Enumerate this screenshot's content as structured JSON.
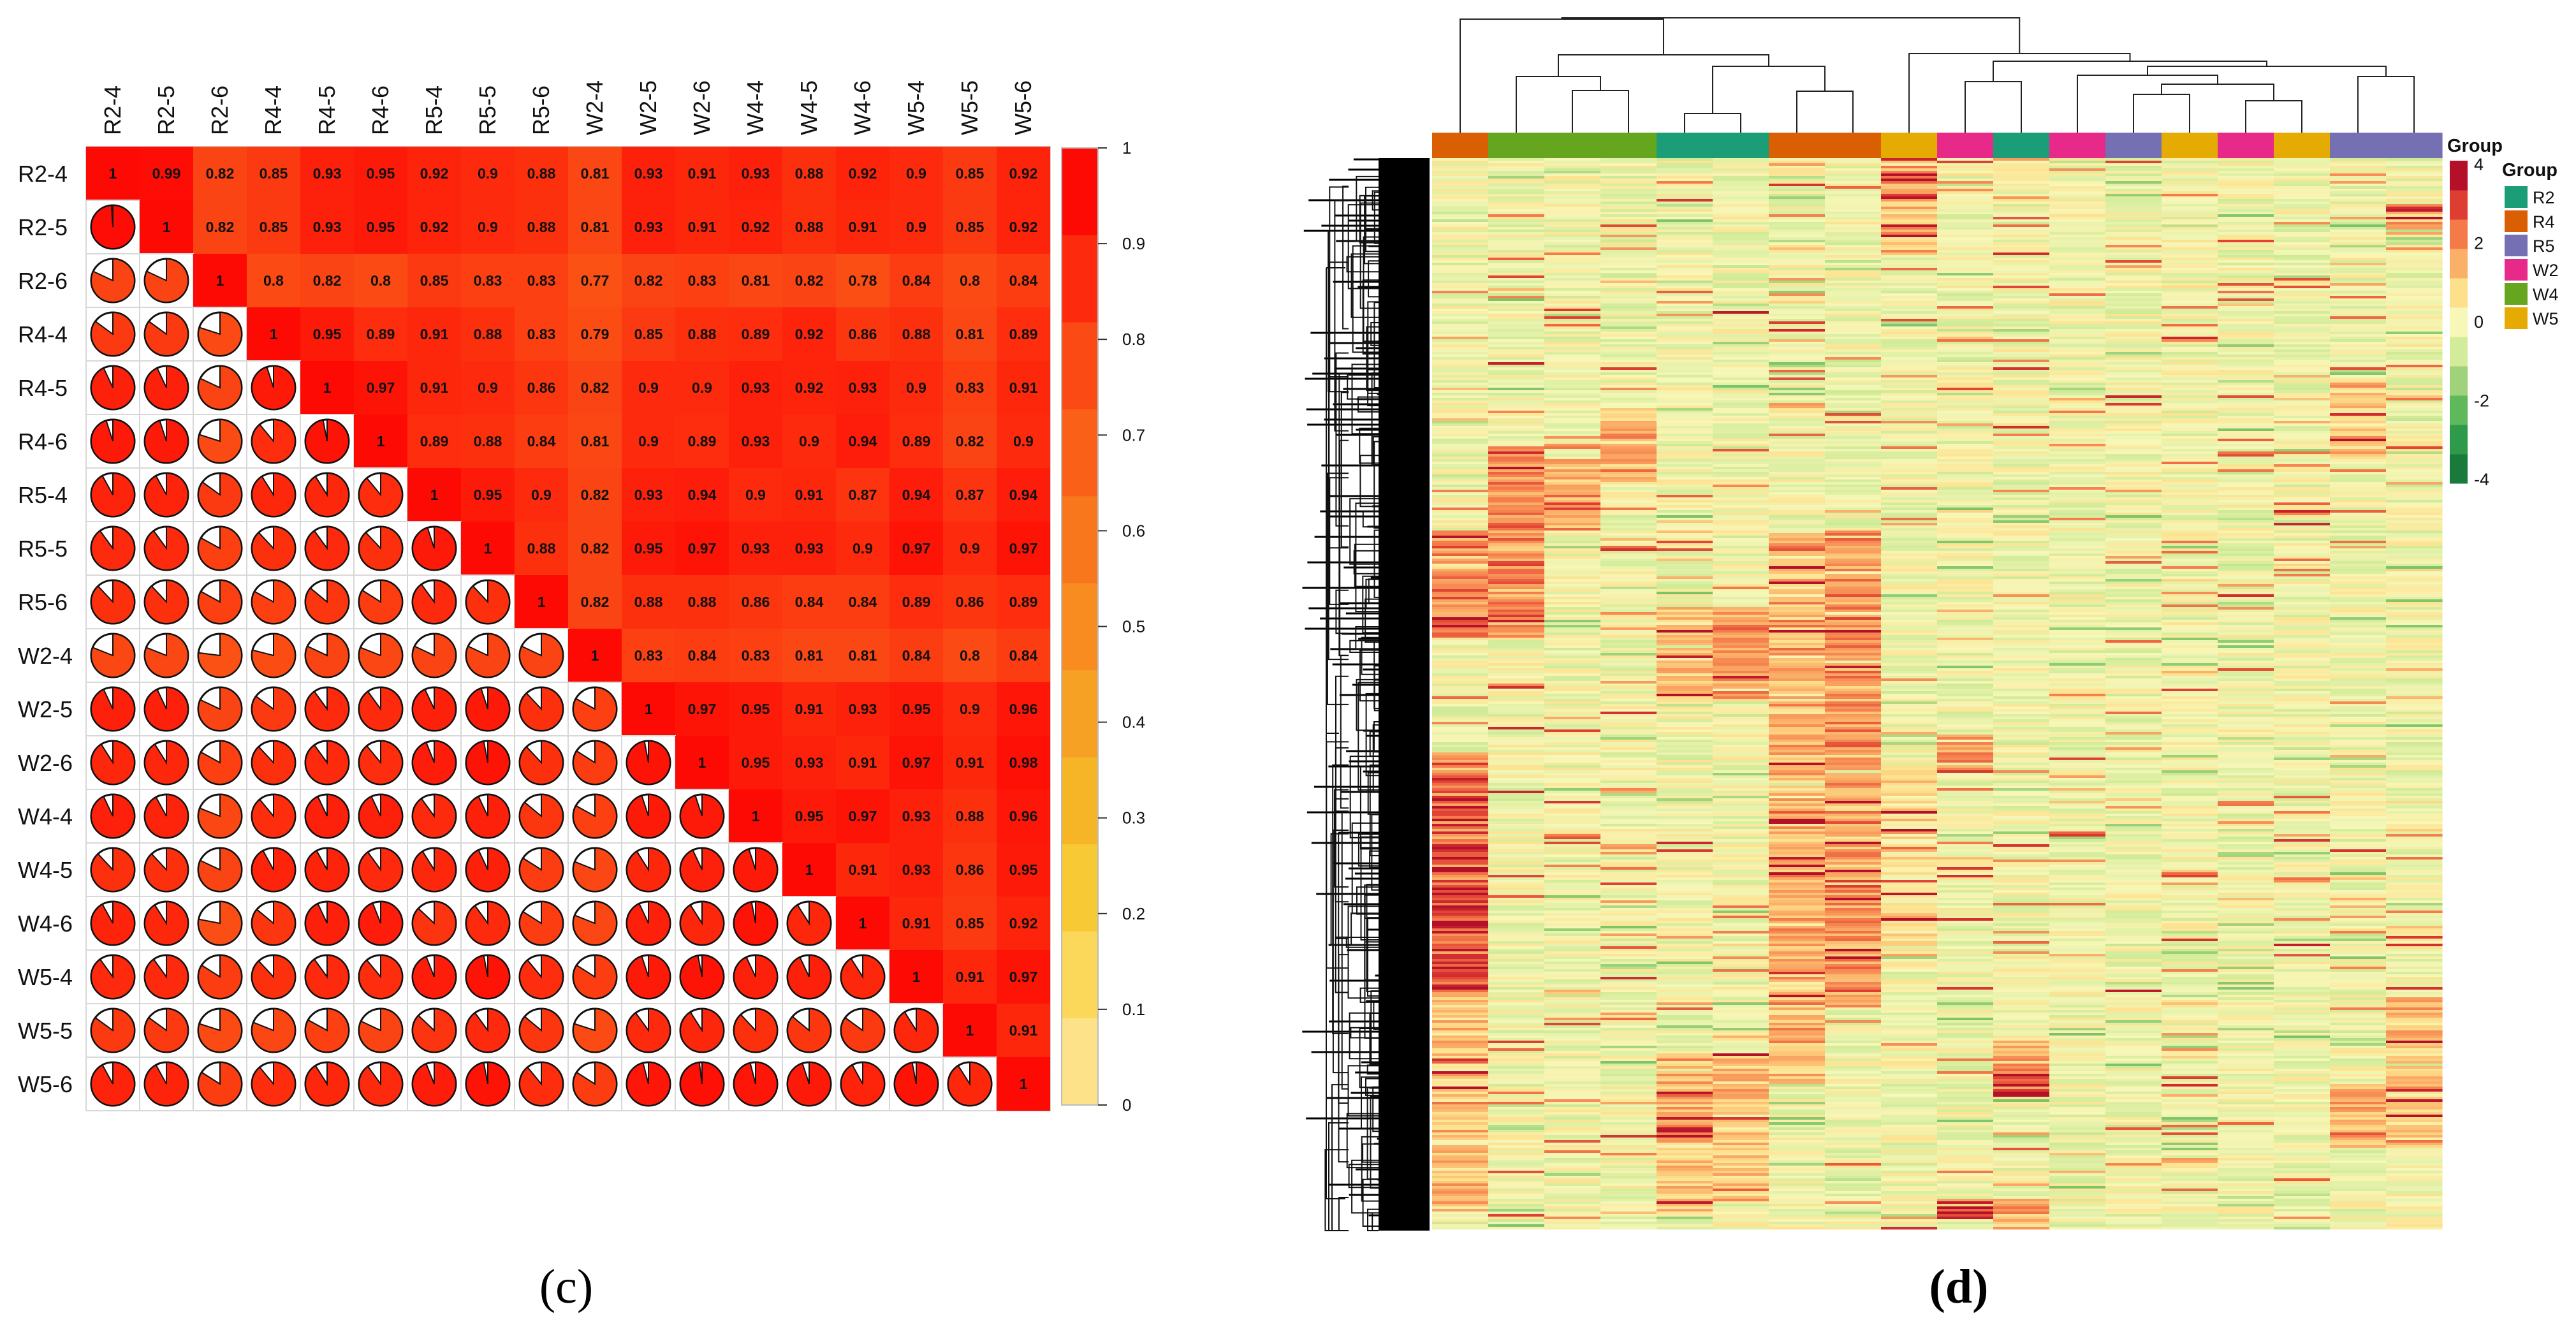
{
  "panel_labels": {
    "left": "(c)",
    "right": "(d)"
  },
  "chart_data": [
    {
      "type": "heatmap",
      "subtype": "correlation-matrix (upper: colored number, lower: pie)",
      "title": "",
      "samples": [
        "R2-4",
        "R2-5",
        "R2-6",
        "R4-4",
        "R4-5",
        "R4-6",
        "R5-4",
        "R5-5",
        "R5-6",
        "W2-4",
        "W2-5",
        "W2-6",
        "W4-4",
        "W4-5",
        "W4-6",
        "W5-4",
        "W5-5",
        "W5-6"
      ],
      "upper_triangle": [
        [
          0.99,
          0.82,
          0.85,
          0.93,
          0.95,
          0.92,
          0.9,
          0.88,
          0.81,
          0.93,
          0.91,
          0.93,
          0.88,
          0.92,
          0.9,
          0.85,
          0.92
        ],
        [
          0.82,
          0.85,
          0.93,
          0.95,
          0.92,
          0.9,
          0.88,
          0.81,
          0.93,
          0.91,
          0.92,
          0.88,
          0.91,
          0.9,
          0.85,
          0.92
        ],
        [
          0.8,
          0.82,
          0.8,
          0.85,
          0.83,
          0.83,
          0.77,
          0.82,
          0.83,
          0.81,
          0.82,
          0.78,
          0.84,
          0.8,
          0.84
        ],
        [
          0.95,
          0.89,
          0.91,
          0.88,
          0.83,
          0.79,
          0.85,
          0.88,
          0.89,
          0.92,
          0.86,
          0.88,
          0.81,
          0.89
        ],
        [
          0.97,
          0.91,
          0.9,
          0.86,
          0.82,
          0.9,
          0.9,
          0.93,
          0.92,
          0.93,
          0.9,
          0.83,
          0.91
        ],
        [
          0.89,
          0.88,
          0.84,
          0.81,
          0.9,
          0.89,
          0.93,
          0.9,
          0.94,
          0.89,
          0.82,
          0.9
        ],
        [
          0.95,
          0.9,
          0.82,
          0.93,
          0.94,
          0.9,
          0.91,
          0.87,
          0.94,
          0.87,
          0.94
        ],
        [
          0.88,
          0.82,
          0.95,
          0.97,
          0.93,
          0.93,
          0.9,
          0.97,
          0.9,
          0.97
        ],
        [
          0.82,
          0.88,
          0.88,
          0.86,
          0.84,
          0.84,
          0.89,
          0.86,
          0.89
        ],
        [
          0.83,
          0.84,
          0.83,
          0.81,
          0.81,
          0.84,
          0.8,
          0.84
        ],
        [
          0.97,
          0.95,
          0.91,
          0.93,
          0.95,
          0.9,
          0.96
        ],
        [
          0.95,
          0.93,
          0.91,
          0.97,
          0.91,
          0.98
        ],
        [
          0.95,
          0.97,
          0.93,
          0.88,
          0.96
        ],
        [
          0.91,
          0.93,
          0.86,
          0.95
        ],
        [
          0.91,
          0.85,
          0.92
        ],
        [
          0.91,
          0.97
        ],
        [
          0.91
        ]
      ],
      "diagonal": 1,
      "colorbar": {
        "range": [
          0,
          1
        ],
        "ticks": [
          0,
          0.1,
          0.2,
          0.3,
          0.4,
          0.5,
          0.6,
          0.7,
          0.8,
          0.9,
          1
        ],
        "tick_labels": [
          "0",
          "0.1",
          "0.2",
          "0.3",
          "0.4",
          "0.5",
          "0.6",
          "0.7",
          "0.8",
          "0.9",
          "1"
        ],
        "colors": [
          "#fde28a",
          "#fbd75a",
          "#f7c934",
          "#f5b526",
          "#f6a123",
          "#f88c20",
          "#f9771c",
          "#fa6018",
          "#fb4a14",
          "#fd2a0d",
          "#fe0a05"
        ]
      }
    },
    {
      "type": "heatmap",
      "subtype": "clustered expression heatmap with dendrograms",
      "group_annotation_title": "Group",
      "groups": [
        {
          "name": "R2",
          "color": "#1b9e77"
        },
        {
          "name": "R4",
          "color": "#d95f02"
        },
        {
          "name": "R5",
          "color": "#7570b3"
        },
        {
          "name": "W2",
          "color": "#e7298a"
        },
        {
          "name": "W4",
          "color": "#66a61e"
        },
        {
          "name": "W5",
          "color": "#e6ab02"
        }
      ],
      "column_groups": [
        "R4",
        "W4",
        "W4",
        "W4",
        "R2",
        "R2",
        "R4",
        "R4",
        "W5",
        "W2",
        "R2",
        "W2",
        "R5",
        "W5",
        "W2",
        "W5",
        "R5",
        "R5"
      ],
      "scale": {
        "title": "Group",
        "range": [
          -4,
          4
        ],
        "tick_labels": [
          "4",
          "2",
          "0",
          "-2",
          "-4"
        ],
        "colors": [
          "#1a7a3c",
          "#2e9a4a",
          "#5fb85a",
          "#9fd27a",
          "#d3ec9a",
          "#f7f7b8",
          "#fde08c",
          "#fbb068",
          "#f47a4a",
          "#de3e32",
          "#b5102a"
        ]
      }
    }
  ]
}
